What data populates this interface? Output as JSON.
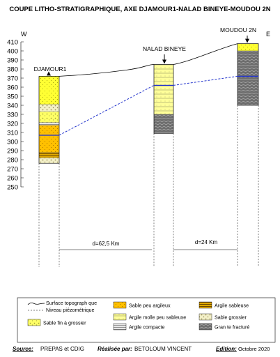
{
  "title": "COUPE LITHO-STRATIGRAPHIQUE, AXE DJAMOUR1-NALAD BINEYE-MOUDOU 2N",
  "axis": {
    "left_label": "W",
    "right_label": "E",
    "ticks": [
      410,
      400,
      390,
      380,
      370,
      360,
      350,
      340,
      330,
      320,
      310,
      300,
      290,
      280,
      270,
      260,
      250
    ]
  },
  "wells": [
    {
      "name": "DJAMOUR1",
      "top": 372,
      "bottom": 276,
      "water": 307,
      "layers": [
        {
          "from": 372,
          "to": 341,
          "pattern": "yellow"
        },
        {
          "from": 341,
          "to": 333,
          "pattern": "coarse"
        },
        {
          "from": 333,
          "to": 321,
          "pattern": "finecoarse"
        },
        {
          "from": 321,
          "to": 318,
          "pattern": "compact"
        },
        {
          "from": 318,
          "to": 288,
          "pattern": "orange"
        },
        {
          "from": 288,
          "to": 282,
          "pattern": "sandyclay"
        },
        {
          "from": 282,
          "to": 276,
          "pattern": "coarse"
        }
      ]
    },
    {
      "name": "NALAD BINEYE",
      "top": 385,
      "bottom": 309,
      "water": 362,
      "layers": [
        {
          "from": 385,
          "to": 330,
          "pattern": "soft"
        },
        {
          "from": 330,
          "to": 309,
          "pattern": "granite"
        }
      ]
    },
    {
      "name": "MOUDOU 2N",
      "top": 408,
      "bottom": 340,
      "water": 372,
      "layers": [
        {
          "from": 408,
          "to": 400,
          "pattern": "yellow"
        },
        {
          "from": 400,
          "to": 340,
          "pattern": "granite"
        }
      ]
    }
  ],
  "distances": [
    "d=62,5 Km",
    "d=24 Km"
  ],
  "legend": [
    {
      "key": "surface",
      "label": "Surface topograph que"
    },
    {
      "key": "water",
      "label": "Niveau piézométrique"
    },
    {
      "key": "finecoarse",
      "label": "Sable fin à grossier"
    },
    {
      "key": "orange",
      "label": "Sable peu argileux"
    },
    {
      "key": "soft",
      "label": "Argile molle peu sableuse"
    },
    {
      "key": "compact",
      "label": "Argile compacte"
    },
    {
      "key": "sandyclay",
      "label": "Argile sableuse"
    },
    {
      "key": "coarse",
      "label": "Sable grossier"
    },
    {
      "key": "granite",
      "label": "Gran te fracturé"
    }
  ],
  "footer": {
    "source_label": "Source:",
    "source_value": "PREPAS et CDIG",
    "author_label": "Réalisée par:",
    "author_value": "BETOLOUM VINCENT",
    "edition_label": "Edition:",
    "edition_value": "Octobre 2020"
  },
  "colors": {
    "water_line": "#2233cc",
    "yellow": "#ffff33",
    "orange": "#ffc000",
    "granite": "#6e6e6e"
  }
}
